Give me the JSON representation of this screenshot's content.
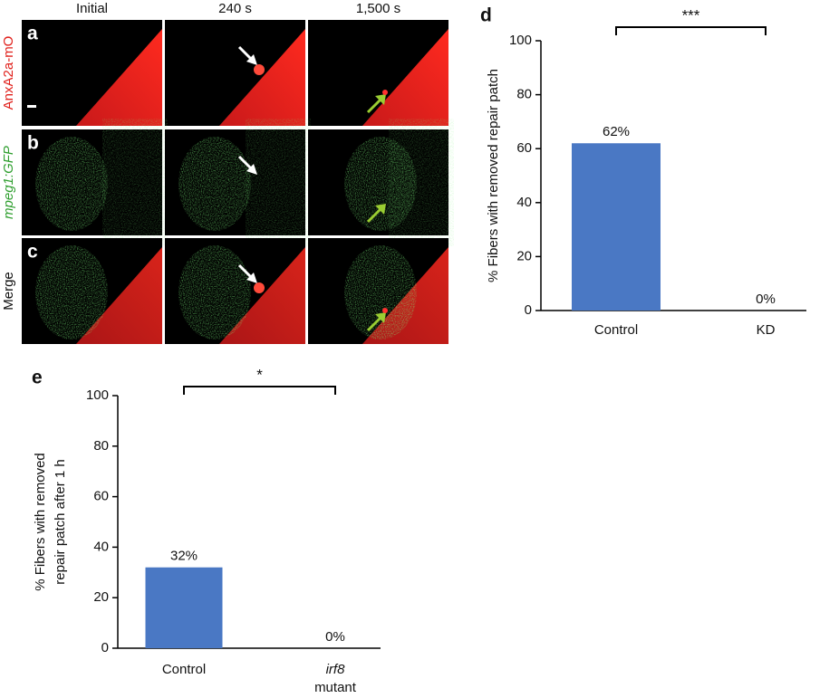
{
  "panels": {
    "columns": [
      "Initial",
      "240 s",
      "1,500 s"
    ],
    "rows": [
      {
        "letter": "a",
        "label": "AnxA2a-mO"
      },
      {
        "letter": "b",
        "label": "mpeg1:GFP"
      },
      {
        "letter": "c",
        "label": "Merge"
      }
    ]
  },
  "chart_data": [
    {
      "type": "bar",
      "letter": "d",
      "ylabel": [
        "% Fibers with removed repair patch"
      ],
      "categories": [
        "Control",
        "KD"
      ],
      "values": [
        62,
        0
      ],
      "value_labels": [
        "62%",
        "0%"
      ],
      "color": "#4a78c4",
      "ylim": [
        0,
        100
      ],
      "yticks": [
        0,
        20,
        40,
        60,
        80,
        100
      ],
      "annotation": "***"
    },
    {
      "type": "bar",
      "letter": "e",
      "ylabel": [
        "% Fibers with removed",
        "repair patch after 1 h"
      ],
      "categories": [
        "Control",
        "irf8 mutant"
      ],
      "values": [
        32,
        0
      ],
      "value_labels": [
        "32%",
        "0%"
      ],
      "color": "#4a78c4",
      "ylim": [
        0,
        100
      ],
      "yticks": [
        0,
        20,
        40,
        60,
        80,
        100
      ],
      "annotation": "*"
    }
  ]
}
